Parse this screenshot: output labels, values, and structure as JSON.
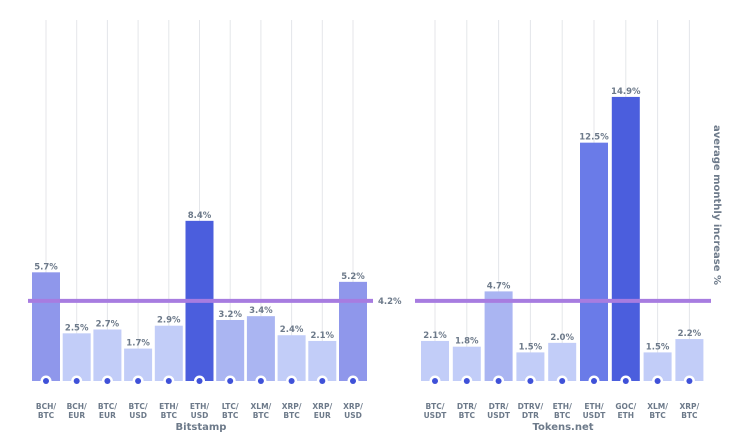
{
  "chart_data": [
    {
      "type": "bar",
      "xlabel": "Bitstamp",
      "categories": [
        "BCH/\nBTC",
        "BCH/\nEUR",
        "BTC/\nEUR",
        "BTC/\nUSD",
        "ETH/\nBTC",
        "ETH/\nUSD",
        "LTC/\nBTC",
        "XLM/\nBTC",
        "XRP/\nBTC",
        "XRP/\nEUR",
        "XRP/\nUSD"
      ],
      "values": [
        5.7,
        2.5,
        2.7,
        1.7,
        2.9,
        8.4,
        3.2,
        3.4,
        2.4,
        2.1,
        5.2
      ],
      "value_labels": [
        "5.7%",
        "2.5%",
        "2.7%",
        "1.7%",
        "2.9%",
        "8.4%",
        "3.2%",
        "3.4%",
        "2.4%",
        "2.1%",
        "5.2%"
      ],
      "reference_line": {
        "value": 4.2,
        "label": "4.2%"
      },
      "ylim": [
        0,
        15
      ]
    },
    {
      "type": "bar",
      "xlabel": "Tokens.net",
      "ylabel": "average monthly increase %",
      "categories": [
        "BTC/\nUSDT",
        "DTR/\nBTC",
        "DTR/\nUSDT",
        "DTRV/\nDTR",
        "ETH/\nBTC",
        "ETH/\nUSDT",
        "GOC/\nETH",
        "XLM/\nBTC",
        "XRP/\nBTC"
      ],
      "values": [
        2.1,
        1.8,
        4.7,
        1.5,
        2.0,
        12.5,
        14.9,
        1.5,
        2.2
      ],
      "value_labels": [
        "2.1%",
        "1.8%",
        "4.7%",
        "1.5%",
        "2.0%",
        "12.5%",
        "14.9%",
        "1.5%",
        "2.2%"
      ],
      "reference_line": {
        "value": 4.2
      },
      "ylim": [
        0,
        15
      ]
    }
  ],
  "colors": {
    "bar_scale": [
      "#c2cdf8",
      "#aab5f2",
      "#8f97eb",
      "#6a7be8",
      "#4b5edd"
    ],
    "reference_line": "#a77ce0",
    "label_text": "#6d7a8a",
    "grid": "#e4e6ea",
    "dot": "#3f51d8"
  }
}
